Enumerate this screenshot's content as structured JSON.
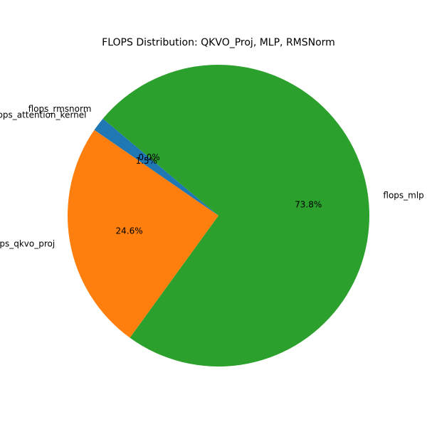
{
  "chart_data": {
    "type": "pie",
    "title": "FLOPS Distribution: QKVO_Proj, MLP, RMSNorm",
    "start_angle_deg": 140,
    "direction": "counterclockwise",
    "slices": [
      {
        "label": "flops_attention_kernel",
        "value": 1.5,
        "pct_label": "1.5%",
        "color": "#1f77b4"
      },
      {
        "label": "flops_qkvo_proj",
        "value": 24.6,
        "pct_label": "24.6%",
        "color": "#ff7f0e"
      },
      {
        "label": "flops_mlp",
        "value": 73.8,
        "pct_label": "73.8%",
        "color": "#2ca02c"
      },
      {
        "label": "flops_rmsnorm",
        "value": 0.0,
        "pct_label": "0.0%",
        "color": "#d62728"
      }
    ]
  }
}
